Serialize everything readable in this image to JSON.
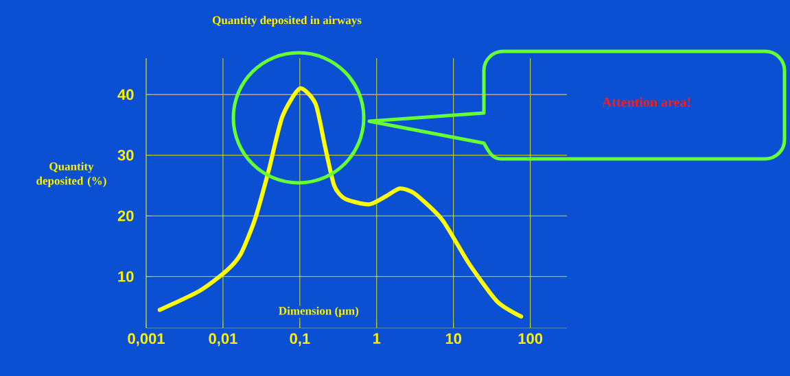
{
  "chart_data": {
    "type": "line",
    "title": "Quantity deposited in airways",
    "xlabel": "Dimension (µm)",
    "ylabel": "Quantity deposited (%)",
    "annotations": [
      "Attention area!"
    ],
    "x": [
      0.0015,
      0.0049,
      0.011,
      0.017,
      0.026,
      0.039,
      0.059,
      0.1,
      0.16,
      0.21,
      0.28,
      0.39,
      0.8,
      1.35,
      2.0,
      3.1,
      7.1,
      16,
      37,
      76
    ],
    "series": [
      {
        "color": "#ffff00",
        "values": [
          4.5,
          7.6,
          10.9,
          13.7,
          19.4,
          27.3,
          36.3,
          41,
          38.5,
          31.8,
          25,
          22.8,
          21.9,
          23.3,
          24.5,
          23.7,
          19.4,
          12.1,
          5.9,
          3.4
        ]
      }
    ],
    "log": "x",
    "xlim": [
      0.001,
      300
    ],
    "ylim": [
      1.5,
      46
    ],
    "xticks": [
      {
        "value": 0.001,
        "label": "0,001"
      },
      {
        "value": 0.01,
        "label": "0,01"
      },
      {
        "value": 0.1,
        "label": "0,1"
      },
      1,
      10,
      100
    ],
    "yticks": [
      10,
      20,
      30,
      40
    ],
    "ref_lines": [
      {
        "axis": "y",
        "value": 40,
        "color": "#b48caa"
      }
    ],
    "grid": true,
    "marker": "none",
    "line_style": "solid"
  }
}
